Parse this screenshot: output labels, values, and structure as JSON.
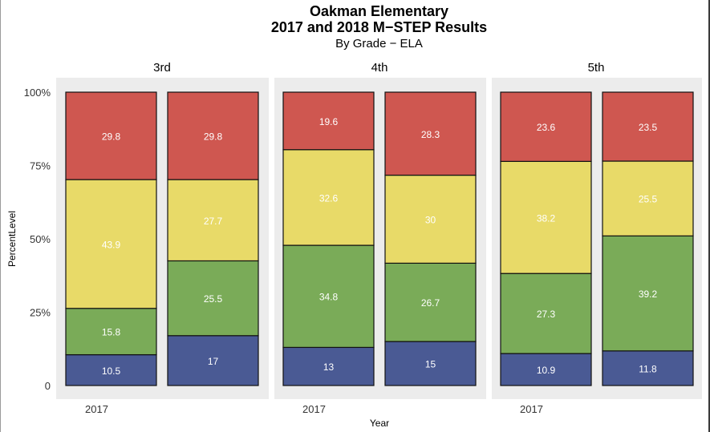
{
  "chart_data": {
    "type": "bar",
    "stacked": true,
    "title": "Oakman Elementary",
    "title2": "2017 and 2018 M−STEP Results",
    "subtitle": "By Grade − ELA",
    "xlabel": "Year",
    "ylabel": "PercentLevel",
    "ylim": [
      0,
      100
    ],
    "yticks": [
      {
        "value": 0,
        "label": "0"
      },
      {
        "value": 25,
        "label": "25%"
      },
      {
        "value": 50,
        "label": "50%"
      },
      {
        "value": 75,
        "label": "75%"
      },
      {
        "value": 100,
        "label": "100%"
      }
    ],
    "series_colors": [
      "#4a5a94",
      "#7aab58",
      "#e8da68",
      "#cf5750"
    ],
    "panels": [
      {
        "name": "3rd",
        "bars": [
          {
            "year_label": "2017",
            "values": [
              10.5,
              15.8,
              43.9,
              29.8
            ],
            "labels": [
              "10.5",
              "15.8",
              "43.9",
              "29.8"
            ]
          },
          {
            "year_label": "",
            "values": [
              17,
              25.5,
              27.7,
              29.8
            ],
            "labels": [
              "17",
              "25.5",
              "27.7",
              "29.8"
            ]
          }
        ]
      },
      {
        "name": "4th",
        "bars": [
          {
            "year_label": "2017",
            "values": [
              13,
              34.8,
              32.6,
              19.6
            ],
            "labels": [
              "13",
              "34.8",
              "32.6",
              "19.6"
            ]
          },
          {
            "year_label": "",
            "values": [
              15,
              26.7,
              30,
              28.3
            ],
            "labels": [
              "15",
              "26.7",
              "30",
              "28.3"
            ]
          }
        ]
      },
      {
        "name": "5th",
        "bars": [
          {
            "year_label": "2017",
            "values": [
              10.9,
              27.3,
              38.2,
              23.6
            ],
            "labels": [
              "10.9",
              "27.3",
              "38.2",
              "23.6"
            ]
          },
          {
            "year_label": "",
            "values": [
              11.8,
              39.2,
              25.5,
              23.5
            ],
            "labels": [
              "11.8",
              "39.2",
              "25.5",
              "23.5"
            ]
          }
        ]
      }
    ]
  }
}
